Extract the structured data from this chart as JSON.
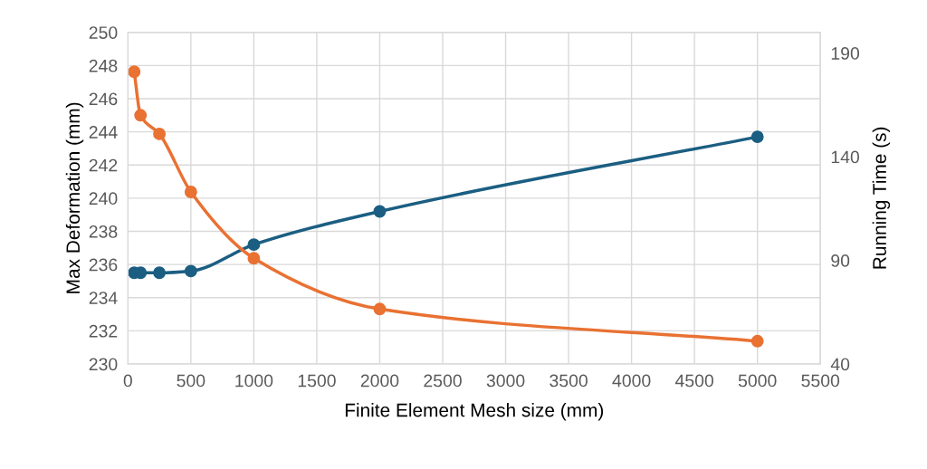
{
  "chart_data": {
    "type": "line",
    "xlabel": "Finite Element Mesh size (mm)",
    "ylabel": "Max Deformation (mm)",
    "y2label": "Running Time (s)",
    "x": [
      50,
      100,
      250,
      500,
      1000,
      2000,
      5000
    ],
    "series": [
      {
        "color": "#1b5e82",
        "values": [
          235.5,
          235.5,
          235.5,
          235.6,
          237.2,
          239.2,
          243.7
        ]
      },
      {
        "color": "#e97132",
        "axis": "y2",
        "values": [
          181,
          160,
          151,
          123,
          91,
          66.5,
          51
        ]
      }
    ],
    "xlim": [
      0,
      5500
    ],
    "xticks": [
      0,
      500,
      1000,
      1500,
      2000,
      2500,
      3000,
      3500,
      4000,
      4500,
      5000,
      5500
    ],
    "ylim": [
      230,
      250
    ],
    "yticks": [
      230,
      232,
      234,
      236,
      238,
      240,
      242,
      244,
      246,
      248,
      250
    ],
    "y2lim": [
      40,
      200
    ],
    "y2ticks": [
      40,
      90,
      140,
      190
    ],
    "grid": true,
    "marker": "circle",
    "line_style": "solid"
  }
}
